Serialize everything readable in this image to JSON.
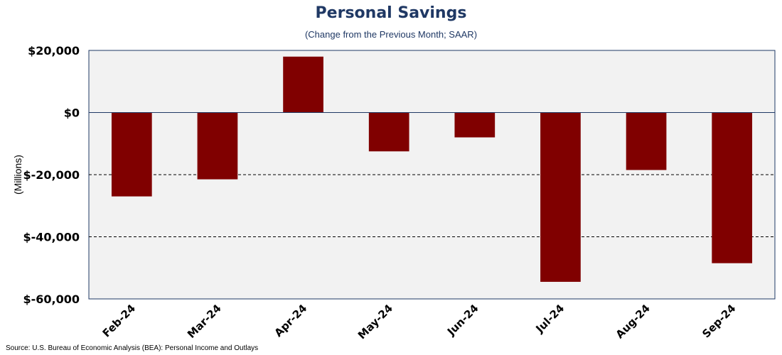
{
  "title": "Personal Savings",
  "subtitle": "(Change from the Previous Month; SAAR)",
  "source": "Source: U.S. Bureau of Economic Analysis (BEA): Personal Income and Outlays",
  "colors": {
    "bar": "#800000",
    "plot_background": "#f2f2f2",
    "plot_border": "#1f3864",
    "title": "#1f3864",
    "zero_line": "#1f3864"
  },
  "chart_data": {
    "type": "bar",
    "title": "Personal Savings",
    "subtitle": "(Change from the Previous Month; SAAR)",
    "xlabel": "",
    "ylabel": "(Millions)",
    "categories": [
      "Feb-24",
      "Mar-24",
      "Apr-24",
      "May-24",
      "Jun-24",
      "Jul-24",
      "Aug-24",
      "Sep-24"
    ],
    "values": [
      -27000,
      -21500,
      18000,
      -12500,
      -8000,
      -54500,
      -18500,
      -48500
    ],
    "ylim": [
      -60000,
      20000
    ],
    "yticks": [
      20000,
      0,
      -20000,
      -40000,
      -60000
    ],
    "ytick_labels": [
      "$20,000",
      "$0",
      "$-20,000",
      "$-40,000",
      "$-60,000"
    ],
    "grid": "dashed horizontal at -20,000 and -40,000",
    "legend": "none"
  }
}
